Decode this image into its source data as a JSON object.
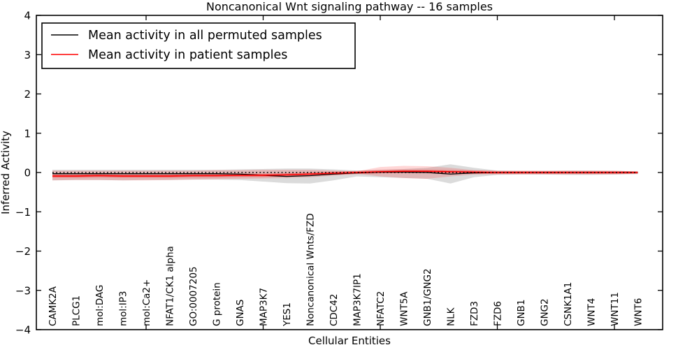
{
  "legend": {
    "items": [
      {
        "label": "Mean activity in all permuted samples",
        "color": "#000000"
      },
      {
        "label": "Mean activity in patient samples",
        "color": "#ff0000"
      }
    ]
  },
  "chart_data": {
    "type": "line",
    "title": "Noncanonical Wnt signaling pathway -- 16 samples",
    "xlabel": "Cellular Entities",
    "ylabel": "Inferred Activity",
    "ylim": [
      -4,
      4
    ],
    "ytick_labels": [
      "4",
      "3",
      "2",
      "1",
      "0",
      "−1",
      "−2",
      "−3",
      "−4"
    ],
    "ytick_values": [
      4,
      3,
      2,
      1,
      0,
      -1,
      -2,
      -3,
      -4
    ],
    "grid": false,
    "legend_position": "upper left",
    "categories": [
      "CAMK2A",
      "PLCG1",
      "mol:DAG",
      "mol:IP3",
      "mol:Ca2+",
      "NFAT1/CK1 alpha",
      "GO:0007205",
      "G protein",
      "GNAS",
      "MAP3K7",
      "YES1",
      "Noncanonical Wnts/FZD",
      "CDC42",
      "MAP3K7IP1",
      "NFATC2",
      "WNT5A",
      "GNB1/GNG2",
      "NLK",
      "FZD3",
      "FZD6",
      "GNB1",
      "GNG2",
      "CSNK1A1",
      "WNT4",
      "WNT11",
      "WNT6"
    ],
    "series": [
      {
        "name": "Mean activity in all permuted samples",
        "color": "#000000",
        "style": "solid",
        "width": 1.3,
        "values": [
          -0.03,
          -0.03,
          -0.03,
          -0.03,
          -0.03,
          -0.03,
          -0.03,
          -0.03,
          -0.04,
          -0.07,
          -0.1,
          -0.08,
          -0.04,
          -0.01,
          0.01,
          0.01,
          0.0,
          -0.04,
          -0.01,
          0.0,
          0.0,
          0.0,
          0.0,
          0.0,
          0.0,
          0.0
        ]
      },
      {
        "name": "Mean activity in patient samples",
        "color": "#ff0000",
        "style": "solid",
        "width": 1.6,
        "values": [
          -0.09,
          -0.09,
          -0.08,
          -0.09,
          -0.09,
          -0.09,
          -0.08,
          -0.08,
          -0.07,
          -0.07,
          -0.06,
          -0.04,
          -0.02,
          0.0,
          0.02,
          0.03,
          0.03,
          0.02,
          0.01,
          0.0,
          0.0,
          0.0,
          0.0,
          0.0,
          0.0,
          0.0
        ]
      },
      {
        "name": "zero-reference",
        "color": "#000000",
        "style": "dotted",
        "width": 1.6,
        "values": [
          0,
          0,
          0,
          0,
          0,
          0,
          0,
          0,
          0,
          0,
          0,
          0,
          0,
          0,
          0,
          0,
          0,
          0,
          0,
          0,
          0,
          0,
          0,
          0,
          0,
          0
        ]
      }
    ],
    "bands": [
      {
        "name": "permuted-range",
        "color": "#999999",
        "opacity": 0.35,
        "lower": [
          -0.2,
          -0.19,
          -0.19,
          -0.2,
          -0.19,
          -0.19,
          -0.18,
          -0.18,
          -0.19,
          -0.23,
          -0.27,
          -0.28,
          -0.2,
          -0.1,
          -0.12,
          -0.14,
          -0.16,
          -0.28,
          -0.12,
          -0.06,
          -0.05,
          -0.05,
          -0.06,
          -0.06,
          -0.05,
          -0.04
        ],
        "upper": [
          0.07,
          0.07,
          0.07,
          0.07,
          0.07,
          0.07,
          0.07,
          0.07,
          0.08,
          0.09,
          0.1,
          0.1,
          0.08,
          0.05,
          0.07,
          0.09,
          0.12,
          0.21,
          0.12,
          0.05,
          0.04,
          0.04,
          0.05,
          0.05,
          0.04,
          0.03
        ]
      },
      {
        "name": "patient-range",
        "color": "#ff0000",
        "opacity": 0.16,
        "lower": [
          -0.2,
          -0.19,
          -0.19,
          -0.2,
          -0.2,
          -0.19,
          -0.18,
          -0.17,
          -0.16,
          -0.15,
          -0.14,
          -0.12,
          -0.08,
          -0.03,
          -0.1,
          -0.14,
          -0.16,
          -0.1,
          -0.05,
          -0.04,
          -0.04,
          -0.04,
          -0.04,
          -0.04,
          -0.04,
          -0.03
        ],
        "upper": [
          0.05,
          0.05,
          0.05,
          0.05,
          0.05,
          0.05,
          0.05,
          0.06,
          0.06,
          0.07,
          0.07,
          0.07,
          0.05,
          0.03,
          0.14,
          0.17,
          0.16,
          0.12,
          0.06,
          0.04,
          0.04,
          0.04,
          0.04,
          0.04,
          0.04,
          0.03
        ]
      },
      {
        "name": "patient-core",
        "color": "#ff0000",
        "opacity": 0.3,
        "lower": [
          -0.13,
          -0.13,
          -0.12,
          -0.13,
          -0.13,
          -0.13,
          -0.12,
          -0.12,
          -0.11,
          -0.11,
          -0.1,
          -0.08,
          -0.06,
          -0.04,
          -0.02,
          -0.01,
          -0.01,
          -0.02,
          -0.03,
          -0.04,
          -0.04,
          -0.04,
          -0.04,
          -0.04,
          -0.04,
          -0.03
        ],
        "upper": [
          -0.05,
          -0.05,
          -0.04,
          -0.05,
          -0.05,
          -0.05,
          -0.04,
          -0.04,
          -0.03,
          -0.03,
          -0.02,
          0.0,
          0.02,
          0.04,
          0.06,
          0.07,
          0.07,
          0.06,
          0.05,
          0.04,
          0.04,
          0.04,
          0.04,
          0.04,
          0.04,
          0.03
        ]
      }
    ]
  }
}
